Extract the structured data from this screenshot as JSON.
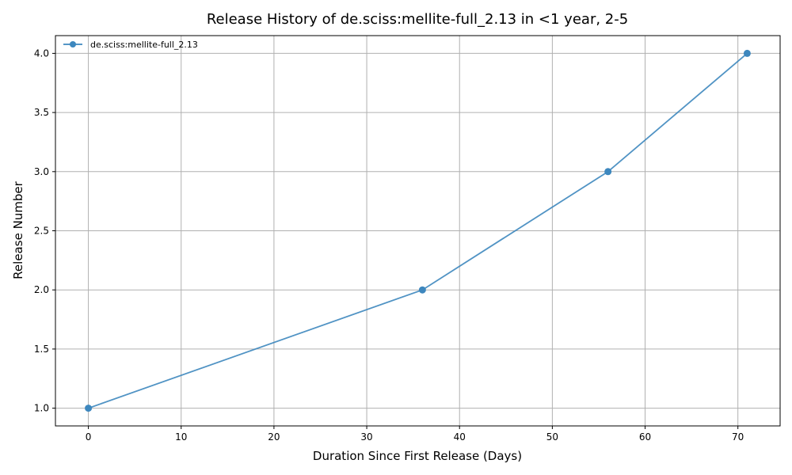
{
  "chart_data": {
    "type": "line",
    "title": "Release History of de.sciss:mellite-full_2.13 in <1 year, 2-5",
    "xlabel": "Duration Since First Release (Days)",
    "ylabel": "Release Number",
    "xlim": [
      -3.55,
      74.55
    ],
    "ylim": [
      0.85,
      4.15
    ],
    "x_ticks": [
      0,
      10,
      20,
      30,
      40,
      50,
      60,
      70
    ],
    "y_ticks": [
      1.0,
      1.5,
      2.0,
      2.5,
      3.0,
      3.5,
      4.0
    ],
    "grid": true,
    "legend_position": "top-left",
    "series": [
      {
        "name": "de.sciss:mellite-full_2.13",
        "color": "#3d87be",
        "marker": "circle",
        "points": [
          {
            "x": 0,
            "y": 1
          },
          {
            "x": 36,
            "y": 2
          },
          {
            "x": 56,
            "y": 3
          },
          {
            "x": 71,
            "y": 4
          }
        ]
      }
    ]
  }
}
